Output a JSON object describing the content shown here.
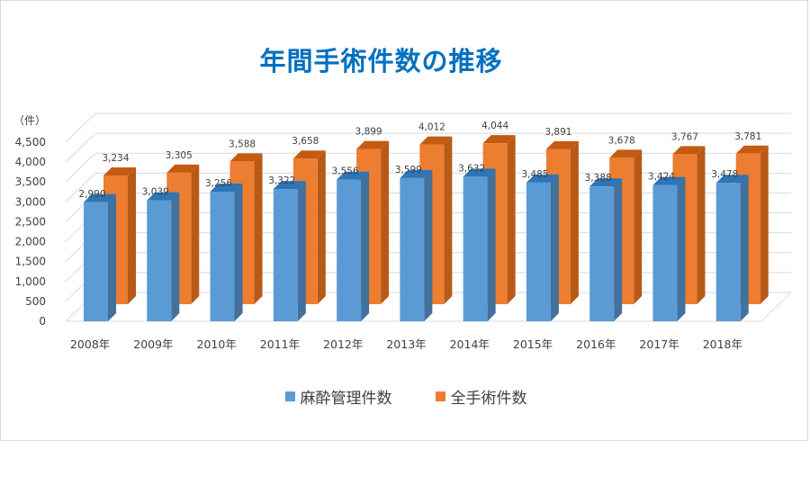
{
  "chart_data": {
    "type": "bar",
    "title": "年間手術件数の推移",
    "ylabel": "（件）",
    "categories": [
      "2008年",
      "2009年",
      "2010年",
      "2011年",
      "2012年",
      "2013年",
      "2014年",
      "2015年",
      "2016年",
      "2017年",
      "2018年"
    ],
    "series": [
      {
        "name": "麻酔管理件数",
        "values": [
          2990,
          3039,
          3256,
          3322,
          3556,
          3599,
          3632,
          3485,
          3388,
          3424,
          3478
        ],
        "labels": [
          "2,990",
          "3,039",
          "3,256",
          "3,322",
          "3,556",
          "3,599",
          "3,632",
          "3,485",
          "3,388",
          "3,424",
          "3,478"
        ],
        "color": "#5b9bd5"
      },
      {
        "name": "全手術件数",
        "values": [
          3234,
          3305,
          3588,
          3658,
          3899,
          4012,
          4044,
          3891,
          3678,
          3767,
          3781
        ],
        "labels": [
          "3,234",
          "3,305",
          "3,588",
          "3,658",
          "3,899",
          "4,012",
          "4,044",
          "3,891",
          "3,678",
          "3,767",
          "3,781"
        ],
        "color": "#ed7d31"
      }
    ],
    "yticks": [
      "0",
      "500",
      "1,000",
      "1,500",
      "2,000",
      "2,500",
      "3,000",
      "3,500",
      "4,000",
      "4,500"
    ],
    "ylim": [
      0,
      4500
    ],
    "grid": true,
    "legend": "bottom"
  }
}
